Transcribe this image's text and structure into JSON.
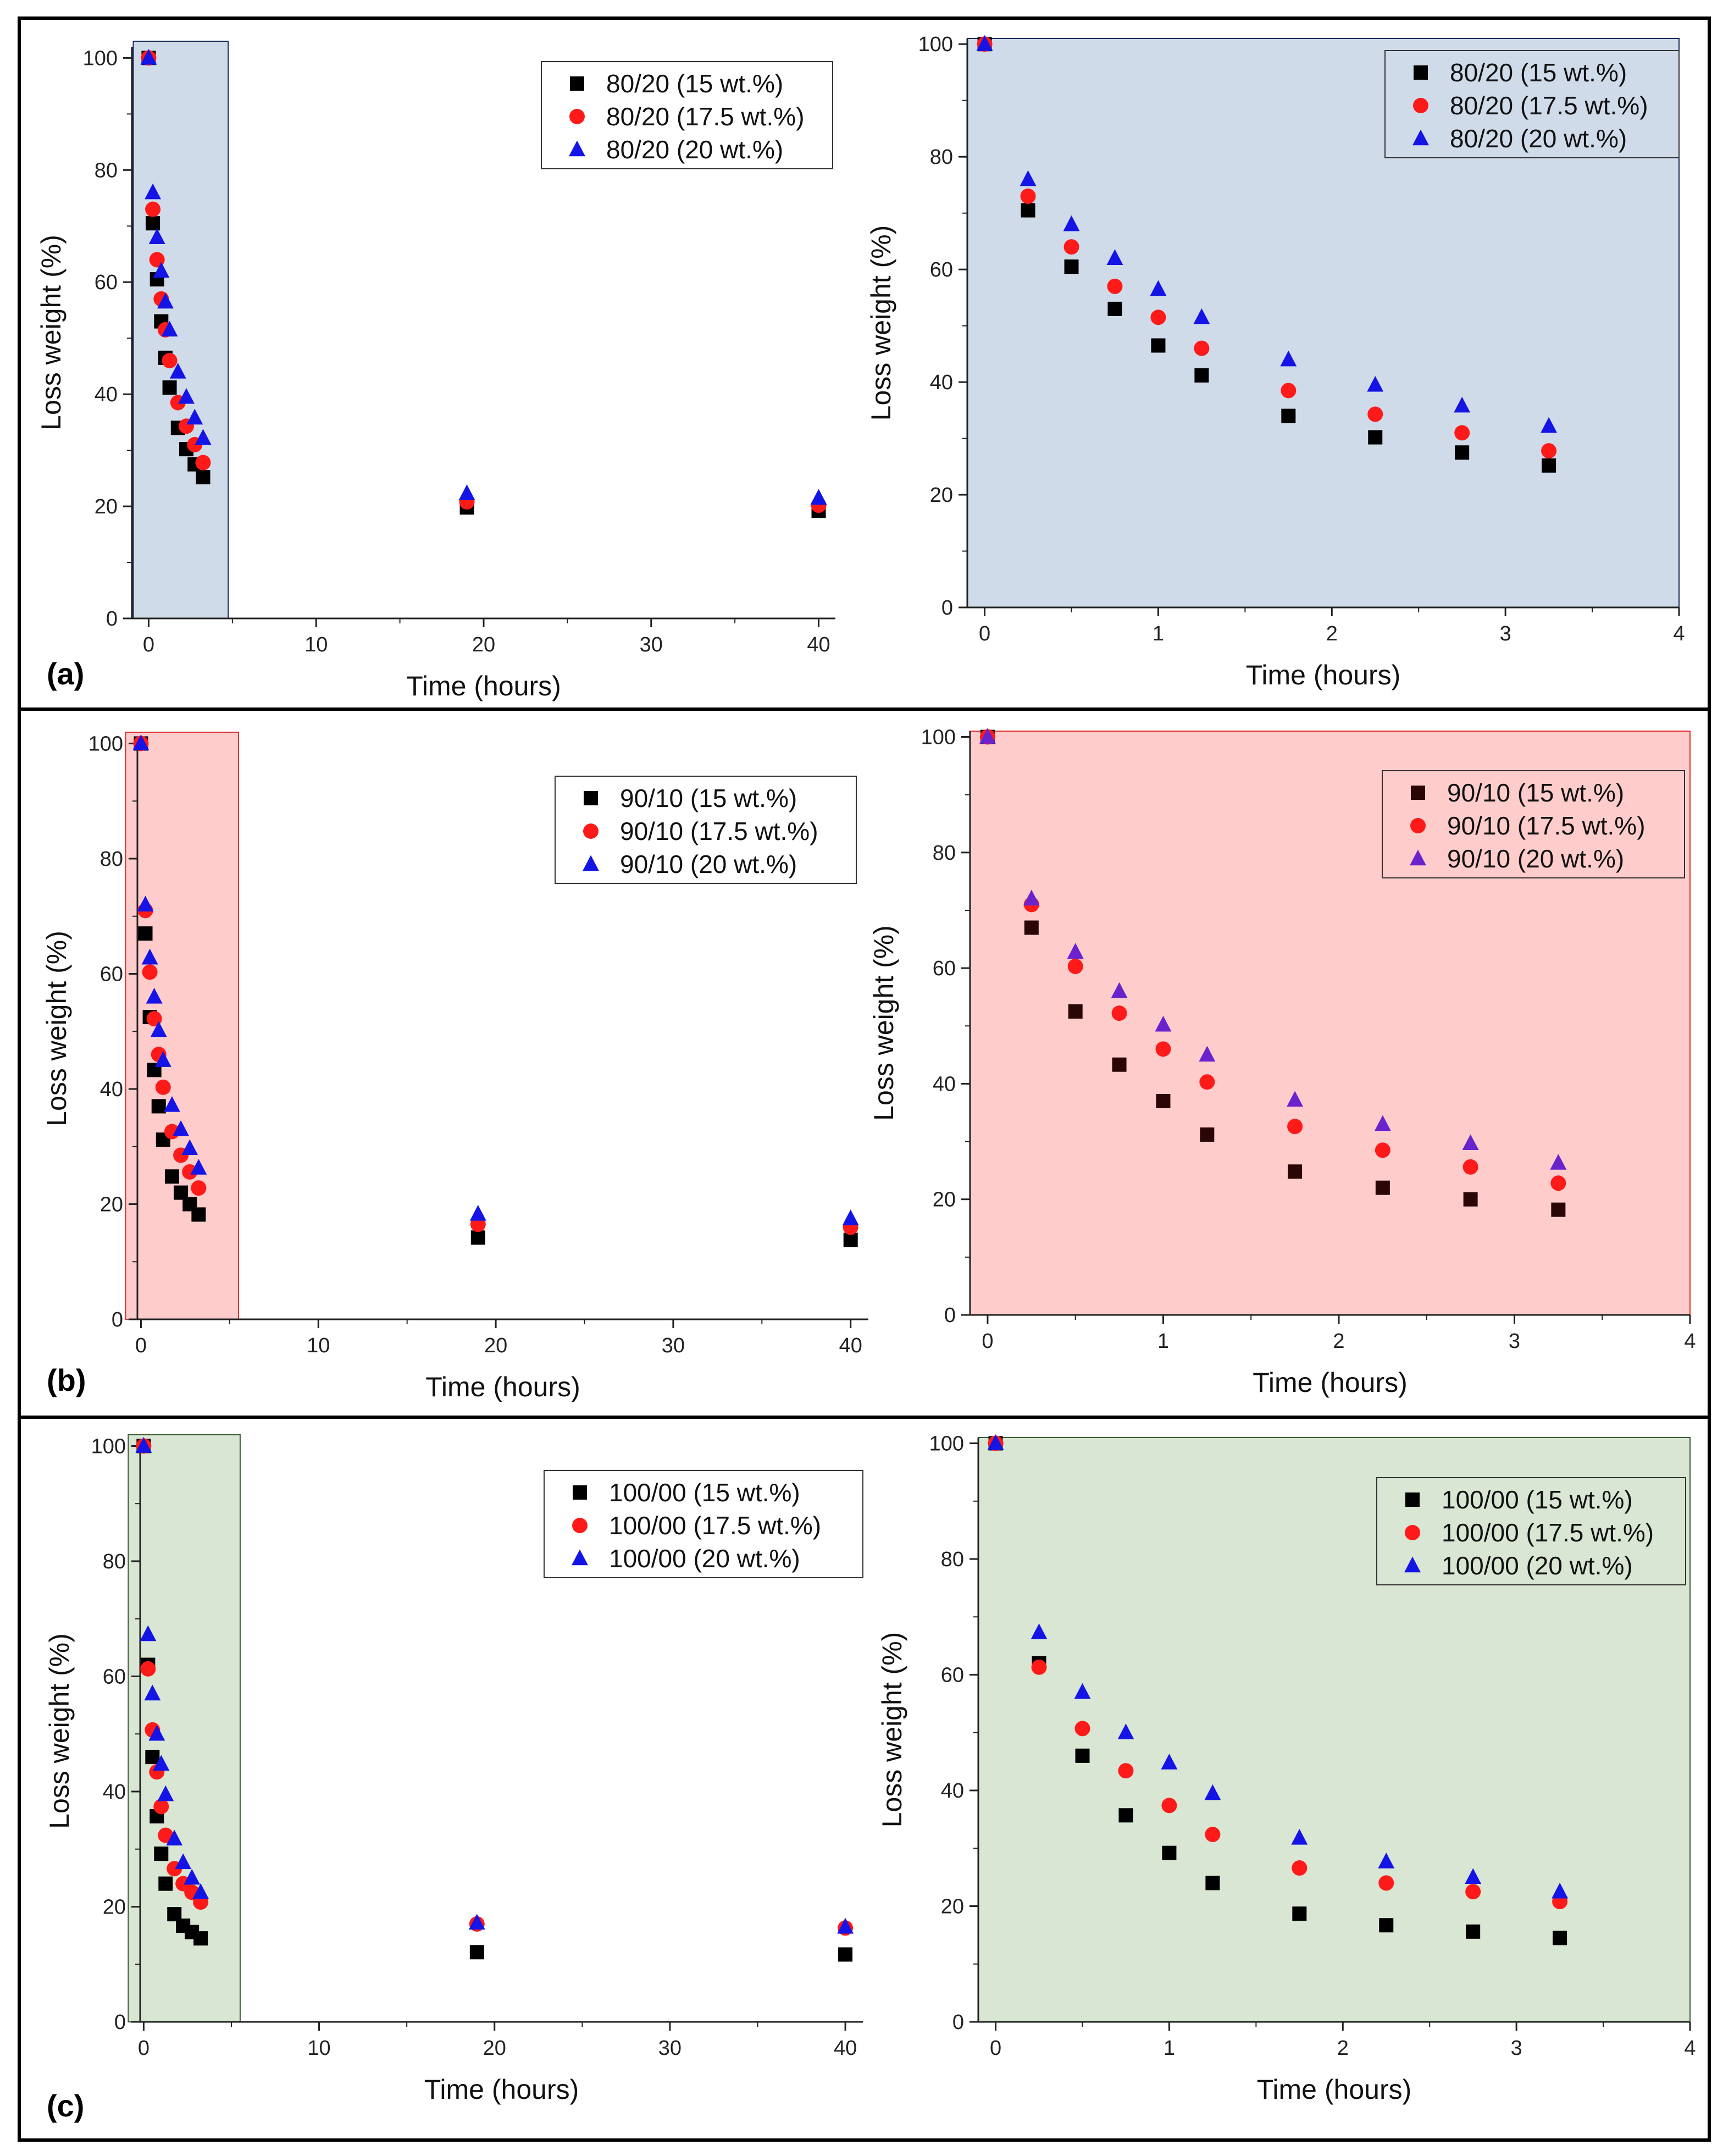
{
  "panels": [
    {
      "label": "(a)"
    },
    {
      "label": "(b)"
    },
    {
      "label": "(c)"
    }
  ],
  "chart_data": [
    {
      "type": "scatter",
      "panel": "(a)",
      "view": "full",
      "xlabel": "Time (hours)",
      "ylabel": "Loss weight (%)",
      "xlim": [
        -1,
        41
      ],
      "ylim": [
        0,
        102
      ],
      "xticks": [
        0,
        10,
        20,
        30,
        40
      ],
      "yticks": [
        0,
        20,
        40,
        60,
        80,
        100
      ],
      "legend": "top-right",
      "shaded_color": "#d0dbe9",
      "highlight_range": [
        0,
        4.75
      ],
      "x": [
        0,
        0.25,
        0.5,
        0.75,
        1,
        1.25,
        1.75,
        2.25,
        2.75,
        3.25,
        19,
        40
      ],
      "series": [
        {
          "name": "80/20 (15 wt.%)",
          "color": "#000000",
          "marker": "square",
          "values": [
            100,
            70.5,
            60.5,
            53,
            46.5,
            41.2,
            34,
            30.2,
            27.5,
            25.2,
            19.8,
            19.2
          ]
        },
        {
          "name": "80/20 (17.5 wt.%)",
          "color": "#ff1a1a",
          "marker": "circle",
          "values": [
            100,
            73,
            64,
            57,
            51.5,
            46,
            38.5,
            34.3,
            31,
            27.8,
            20.8,
            20.2
          ]
        },
        {
          "name": "80/20 (20 wt.%)",
          "color": "#1414e6",
          "marker": "triangle",
          "values": [
            100,
            76,
            68,
            62,
            56.5,
            51.5,
            44,
            39.5,
            35.8,
            32.2,
            22.3,
            21.5
          ]
        }
      ]
    },
    {
      "type": "scatter",
      "panel": "(a)",
      "view": "zoom",
      "xlabel": "Time (hours)",
      "ylabel": "Loss weight (%)",
      "xlim": [
        -0.1,
        4
      ],
      "ylim": [
        0,
        101
      ],
      "xticks": [
        0,
        1,
        2,
        3,
        4
      ],
      "yticks": [
        0,
        20,
        40,
        60,
        80,
        100
      ],
      "legend": "top-right",
      "shaded_color": "#d0dbe9",
      "x": [
        0,
        0.25,
        0.5,
        0.75,
        1,
        1.25,
        1.75,
        2.25,
        2.75,
        3.25
      ],
      "series": [
        {
          "name": "80/20 (15 wt.%)",
          "color": "#000000",
          "marker": "square",
          "values": [
            100,
            70.5,
            60.5,
            53,
            46.5,
            41.2,
            34,
            30.2,
            27.5,
            25.2
          ]
        },
        {
          "name": "80/20 (17.5 wt.%)",
          "color": "#ff1a1a",
          "marker": "circle",
          "values": [
            100,
            73,
            64,
            57,
            51.5,
            46,
            38.5,
            34.3,
            31,
            27.8
          ]
        },
        {
          "name": "80/20 (20 wt.%)",
          "color": "#1414e6",
          "marker": "triangle",
          "values": [
            100,
            76,
            68,
            62,
            56.5,
            51.5,
            44,
            39.5,
            35.8,
            32.2
          ]
        }
      ]
    },
    {
      "type": "scatter",
      "panel": "(b)",
      "view": "full",
      "xlabel": "Time (hours)",
      "ylabel": "Loss weight (%)",
      "xlim": [
        -0.2,
        41
      ],
      "ylim": [
        0,
        101
      ],
      "xticks": [
        0,
        10,
        20,
        30,
        40
      ],
      "yticks": [
        0,
        20,
        40,
        60,
        80,
        100
      ],
      "legend": "top-right",
      "shaded_color": "#ffcccc",
      "highlight_range": [
        0,
        5.5
      ],
      "x": [
        0,
        0.25,
        0.5,
        0.75,
        1,
        1.25,
        1.75,
        2.25,
        2.75,
        3.25,
        19,
        40
      ],
      "series": [
        {
          "name": "90/10 (15 wt.%)",
          "color": "#000000",
          "marker": "square",
          "values": [
            100,
            67,
            52.5,
            43.3,
            37,
            31.2,
            24.8,
            22,
            20,
            18.2,
            14.2,
            13.8
          ]
        },
        {
          "name": "90/10 (17.5 wt.%)",
          "color": "#ff1a1a",
          "marker": "circle",
          "values": [
            100,
            71,
            60.3,
            52.2,
            46,
            40.3,
            32.6,
            28.5,
            25.6,
            22.8,
            16.5,
            16
          ]
        },
        {
          "name": "90/10 (20 wt.%)",
          "color": "#1414e6",
          "marker": "triangle",
          "values": [
            100,
            72,
            62.8,
            56,
            50.2,
            45,
            37.2,
            33,
            29.7,
            26.3,
            18.3,
            17.5
          ]
        }
      ]
    },
    {
      "type": "scatter",
      "panel": "(b)",
      "view": "zoom",
      "xlabel": "Time (hours)",
      "ylabel": "Loss weight (%)",
      "xlim": [
        -0.1,
        4
      ],
      "ylim": [
        0,
        101
      ],
      "xticks": [
        0,
        1,
        2,
        3,
        4
      ],
      "yticks": [
        0,
        20,
        40,
        60,
        80,
        100
      ],
      "legend": "top-right",
      "shaded_color": "#ffcccc",
      "x": [
        0,
        0.25,
        0.5,
        0.75,
        1,
        1.25,
        1.75,
        2.25,
        2.75,
        3.25
      ],
      "series": [
        {
          "name": "90/10 (15 wt.%)",
          "color": "#2a0606",
          "marker": "square",
          "values": [
            100,
            67,
            52.5,
            43.3,
            37,
            31.2,
            24.8,
            22,
            20,
            18.2
          ]
        },
        {
          "name": "90/10 (17.5 wt.%)",
          "color": "#ff1a1a",
          "marker": "circle",
          "values": [
            100,
            71,
            60.3,
            52.2,
            46,
            40.3,
            32.6,
            28.5,
            25.6,
            22.8
          ]
        },
        {
          "name": "90/10 (20 wt.%)",
          "color": "#6a22cc",
          "marker": "triangle",
          "values": [
            100,
            72,
            62.8,
            56,
            50.2,
            45,
            37.2,
            33,
            29.7,
            26.3
          ]
        }
      ]
    },
    {
      "type": "scatter",
      "panel": "(c)",
      "view": "full",
      "xlabel": "Time (hours)",
      "ylabel": "Loss weight (%)",
      "xlim": [
        -0.2,
        41
      ],
      "ylim": [
        0,
        101
      ],
      "xticks": [
        0,
        10,
        20,
        30,
        40
      ],
      "yticks": [
        0,
        20,
        40,
        60,
        80,
        100
      ],
      "legend": "top-right",
      "shaded_color": "#d8e6d3",
      "highlight_range": [
        0,
        5.5
      ],
      "x": [
        0,
        0.25,
        0.5,
        0.75,
        1,
        1.25,
        1.75,
        2.25,
        2.75,
        3.25,
        19,
        40
      ],
      "series": [
        {
          "name": "100/00 (15 wt.%)",
          "color": "#000000",
          "marker": "square",
          "values": [
            100,
            62,
            46,
            35.7,
            29.2,
            24,
            18.7,
            16.7,
            15.6,
            14.5,
            12.1,
            11.7
          ]
        },
        {
          "name": "100/00 (17.5 wt.%)",
          "color": "#ff1a1a",
          "marker": "circle",
          "values": [
            100,
            61.3,
            50.7,
            43.4,
            37.4,
            32.4,
            26.6,
            24,
            22.5,
            20.8,
            17,
            16.3
          ]
        },
        {
          "name": "100/00 (20 wt.%)",
          "color": "#1414e6",
          "marker": "triangle",
          "values": [
            100,
            67.3,
            57,
            50,
            44.8,
            39.5,
            31.8,
            27.7,
            25,
            22.5,
            17.2,
            16.5
          ]
        }
      ]
    },
    {
      "type": "scatter",
      "panel": "(c)",
      "view": "zoom",
      "xlabel": "Time (hours)",
      "ylabel": "Loss weight (%)",
      "xlim": [
        -0.1,
        4
      ],
      "ylim": [
        0,
        101
      ],
      "xticks": [
        0,
        1,
        2,
        3,
        4
      ],
      "yticks": [
        0,
        20,
        40,
        60,
        80,
        100
      ],
      "legend": "top-right",
      "shaded_color": "#d8e6d3",
      "x": [
        0,
        0.25,
        0.5,
        0.75,
        1,
        1.25,
        1.75,
        2.25,
        2.75,
        3.25
      ],
      "series": [
        {
          "name": "100/00 (15 wt.%)",
          "color": "#000000",
          "marker": "square",
          "values": [
            100,
            62,
            46,
            35.7,
            29.2,
            24,
            18.7,
            16.7,
            15.6,
            14.5
          ]
        },
        {
          "name": "100/00 (17.5 wt.%)",
          "color": "#ff1a1a",
          "marker": "circle",
          "values": [
            100,
            61.3,
            50.7,
            43.4,
            37.4,
            32.4,
            26.6,
            24,
            22.5,
            20.8
          ]
        },
        {
          "name": "100/00 (20 wt.%)",
          "color": "#1414e6",
          "marker": "triangle",
          "values": [
            100,
            67.3,
            57,
            50,
            44.8,
            39.5,
            31.8,
            27.7,
            25,
            22.5
          ]
        }
      ]
    }
  ]
}
